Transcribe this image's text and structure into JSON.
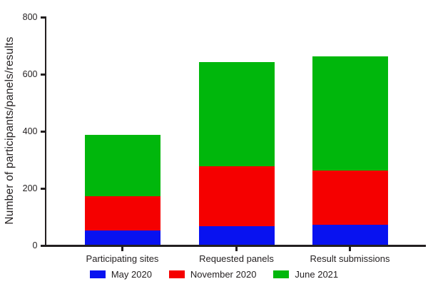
{
  "chart_data": {
    "type": "bar",
    "stacked": true,
    "title": "",
    "categories": [
      "Participating sites",
      "Requested panels",
      "Result submissions"
    ],
    "series": [
      {
        "name": "May 2020",
        "color": "#0812f0",
        "values": [
          50,
          65,
          70
        ]
      },
      {
        "name": "November 2020",
        "color": "#f50000",
        "values": [
          120,
          210,
          190
        ]
      },
      {
        "name": "June 2021",
        "color": "#00b70c",
        "values": [
          215,
          365,
          400
        ]
      }
    ],
    "stack_totals": [
      385,
      640,
      660
    ],
    "xlabel": "",
    "ylabel": "Number of participants/panels/results",
    "ylim": [
      0,
      800
    ],
    "yticks": [
      0,
      200,
      400,
      600,
      800
    ],
    "grid": false,
    "legend_position": "bottom"
  },
  "style": {
    "axis_color": "#231f20",
    "text_color": "#231f20",
    "background": "#ffffff"
  }
}
